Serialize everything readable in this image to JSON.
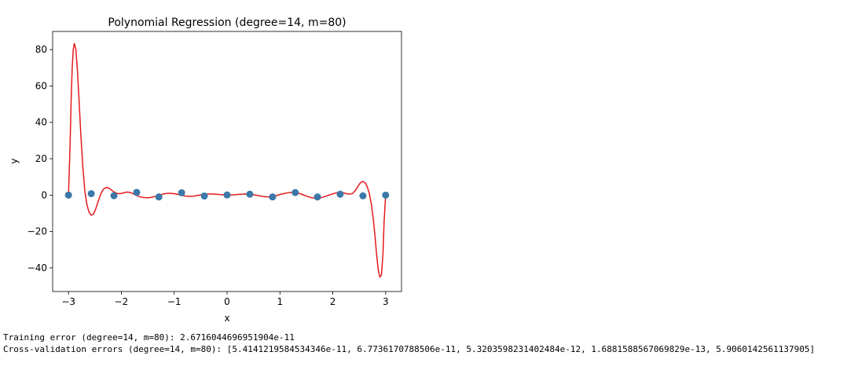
{
  "chart_data": {
    "type": "scatter",
    "title": "Polynomial Regression (degree=14, m=80)",
    "xlabel": "x",
    "ylabel": "y",
    "xlim": [
      -3.3,
      3.3
    ],
    "ylim": [
      -53,
      90
    ],
    "grid": false,
    "xticks": [
      -3,
      -2,
      -1,
      0,
      1,
      2,
      3
    ],
    "xtick_labels": [
      "−3",
      "−2",
      "−1",
      "0",
      "1",
      "2",
      "3"
    ],
    "yticks": [
      -40,
      -20,
      0,
      20,
      40,
      60,
      80
    ],
    "ytick_labels": [
      "−40",
      "−20",
      "0",
      "20",
      "40",
      "60",
      "80"
    ],
    "points": {
      "color": "#3b78a8",
      "x": [
        -3.0,
        -2.57,
        -2.14,
        -1.71,
        -1.29,
        -0.86,
        -0.43,
        0.0,
        0.43,
        0.86,
        1.29,
        1.71,
        2.14,
        2.57,
        3.0
      ],
      "y": [
        0.0,
        0.8,
        -0.3,
        1.5,
        -1.0,
        1.3,
        -0.5,
        0.1,
        0.5,
        -1.0,
        1.4,
        -1.0,
        0.5,
        -0.4,
        0.0
      ]
    },
    "curve": {
      "color": "#e41a1c",
      "x": [
        -3.0,
        -2.97,
        -2.95,
        -2.93,
        -2.91,
        -2.89,
        -2.86,
        -2.83,
        -2.8,
        -2.77,
        -2.73,
        -2.69,
        -2.65,
        -2.61,
        -2.57,
        -2.53,
        -2.49,
        -2.45,
        -2.41,
        -2.37,
        -2.33,
        -2.28,
        -2.23,
        -2.19,
        -2.14,
        -2.09,
        -2.04,
        -1.99,
        -1.94,
        -1.89,
        -1.84,
        -1.78,
        -1.71,
        -1.64,
        -1.57,
        -1.5,
        -1.43,
        -1.36,
        -1.29,
        -1.22,
        -1.15,
        -1.08,
        -1.0,
        -0.93,
        -0.86,
        -0.79,
        -0.72,
        -0.65,
        -0.58,
        -0.5,
        -0.43,
        -0.36,
        -0.29,
        -0.22,
        -0.14,
        -0.07,
        0.0,
        0.07,
        0.14,
        0.22,
        0.29,
        0.36,
        0.43,
        0.5,
        0.58,
        0.65,
        0.72,
        0.79,
        0.86,
        0.93,
        1.0,
        1.08,
        1.15,
        1.22,
        1.29,
        1.36,
        1.43,
        1.5,
        1.57,
        1.64,
        1.71,
        1.78,
        1.85,
        1.92,
        1.99,
        2.06,
        2.14,
        2.2,
        2.26,
        2.32,
        2.38,
        2.44,
        2.49,
        2.53,
        2.57,
        2.61,
        2.65,
        2.69,
        2.73,
        2.77,
        2.8,
        2.83,
        2.86,
        2.89,
        2.92,
        2.95,
        2.97,
        3.0
      ],
      "y": [
        0.0,
        28.0,
        52.0,
        70.0,
        80.0,
        83.5,
        80.0,
        68.0,
        52.0,
        35.0,
        16.0,
        2.0,
        -5.5,
        -9.5,
        -11.0,
        -10.5,
        -8.0,
        -4.5,
        -1.0,
        1.8,
        3.5,
        4.2,
        3.8,
        2.8,
        1.8,
        1.0,
        0.8,
        1.0,
        1.4,
        1.7,
        1.5,
        0.8,
        -0.2,
        -1.0,
        -1.4,
        -1.5,
        -1.2,
        -0.7,
        -0.1,
        0.5,
        0.9,
        1.0,
        0.8,
        0.4,
        -0.1,
        -0.5,
        -0.7,
        -0.6,
        -0.3,
        0.1,
        0.4,
        0.6,
        0.6,
        0.5,
        0.3,
        0.2,
        0.1,
        0.1,
        0.2,
        0.4,
        0.5,
        0.6,
        0.5,
        0.2,
        -0.2,
        -0.6,
        -0.9,
        -1.0,
        -0.8,
        -0.3,
        0.3,
        0.9,
        1.3,
        1.5,
        1.4,
        1.0,
        0.3,
        -0.5,
        -1.2,
        -1.6,
        -1.7,
        -1.4,
        -0.8,
        -0.1,
        0.6,
        1.2,
        1.5,
        1.3,
        0.8,
        0.5,
        1.0,
        3.0,
        5.5,
        7.0,
        7.5,
        6.8,
        4.8,
        1.0,
        -5.0,
        -14.0,
        -23.0,
        -33.0,
        -41.0,
        -45.0,
        -44.0,
        -32.0,
        -15.0,
        0.0
      ]
    }
  },
  "output": {
    "training_error": "Training error (degree=14, m=80): 2.6716044696951904e-11",
    "cv_errors": "Cross-validation errors (degree=14, m=80): [5.4141219584534346e-11, 6.7736170788506e-11, 5.3203598231402484e-12, 1.6881588567069829e-13, 5.9060142561137905]"
  }
}
